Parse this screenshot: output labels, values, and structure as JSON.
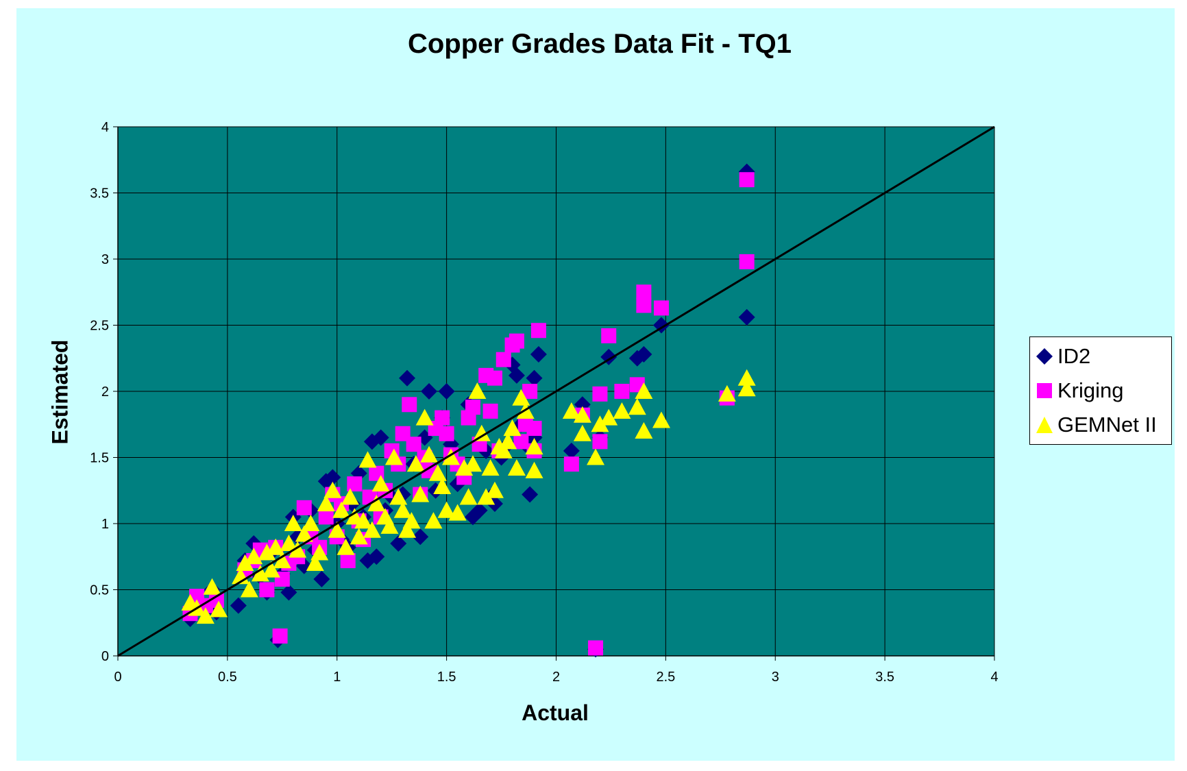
{
  "chart_data": {
    "type": "scatter",
    "title": "Copper Grades Data Fit - TQ1",
    "xlabel": "Actual",
    "ylabel": "Estimated",
    "xlim": [
      0,
      4
    ],
    "ylim": [
      0,
      4
    ],
    "xticks": [
      "0",
      "0.5",
      "1",
      "1.5",
      "2",
      "2.5",
      "3",
      "3.5",
      "4"
    ],
    "yticks": [
      "0",
      "0.5",
      "1",
      "1.5",
      "2",
      "2.5",
      "3",
      "3.5",
      "4"
    ],
    "grid": true,
    "legend": "right",
    "reference_line": {
      "from": [
        0,
        0
      ],
      "to": [
        4,
        4
      ],
      "color": "#000000"
    },
    "plot_background": "#008080",
    "chart_background": "#ccffff",
    "series": [
      {
        "name": "ID2",
        "marker": "diamond",
        "color": "#000080",
        "points": [
          [
            0.33,
            0.28
          ],
          [
            0.36,
            0.42
          ],
          [
            0.4,
            0.35
          ],
          [
            0.43,
            0.5
          ],
          [
            0.45,
            0.33
          ],
          [
            0.55,
            0.38
          ],
          [
            0.58,
            0.72
          ],
          [
            0.62,
            0.85
          ],
          [
            0.65,
            0.6
          ],
          [
            0.68,
            0.48
          ],
          [
            0.7,
            0.78
          ],
          [
            0.73,
            0.12
          ],
          [
            0.75,
            0.62
          ],
          [
            0.78,
            0.48
          ],
          [
            0.8,
            1.05
          ],
          [
            0.82,
            0.9
          ],
          [
            0.85,
            0.68
          ],
          [
            0.88,
            1.1
          ],
          [
            0.9,
            0.8
          ],
          [
            0.93,
            0.58
          ],
          [
            0.95,
            1.32
          ],
          [
            0.98,
            1.35
          ],
          [
            1.0,
            1.0
          ],
          [
            1.02,
            0.88
          ],
          [
            1.05,
            0.82
          ],
          [
            1.07,
            1.15
          ],
          [
            1.1,
            1.38
          ],
          [
            1.12,
            1.05
          ],
          [
            1.14,
            0.72
          ],
          [
            1.16,
            1.62
          ],
          [
            1.18,
            0.75
          ],
          [
            1.2,
            1.65
          ],
          [
            1.22,
            1.1
          ],
          [
            1.25,
            1.2
          ],
          [
            1.28,
            0.85
          ],
          [
            1.3,
            1.22
          ],
          [
            1.32,
            2.1
          ],
          [
            1.35,
            1.45
          ],
          [
            1.38,
            0.9
          ],
          [
            1.4,
            1.65
          ],
          [
            1.42,
            2.0
          ],
          [
            1.45,
            1.25
          ],
          [
            1.48,
            1.8
          ],
          [
            1.5,
            2.0
          ],
          [
            1.52,
            1.6
          ],
          [
            1.55,
            1.3
          ],
          [
            1.6,
            1.9
          ],
          [
            1.62,
            1.05
          ],
          [
            1.65,
            1.1
          ],
          [
            1.68,
            1.55
          ],
          [
            1.7,
            1.2
          ],
          [
            1.72,
            1.15
          ],
          [
            1.75,
            1.5
          ],
          [
            1.78,
            1.6
          ],
          [
            1.8,
            2.2
          ],
          [
            1.82,
            2.12
          ],
          [
            1.84,
            1.75
          ],
          [
            1.86,
            1.6
          ],
          [
            1.88,
            1.22
          ],
          [
            1.9,
            2.1
          ],
          [
            1.92,
            2.28
          ],
          [
            1.9,
            1.65
          ],
          [
            2.07,
            1.55
          ],
          [
            2.12,
            1.9
          ],
          [
            2.2,
            1.65
          ],
          [
            2.24,
            2.26
          ],
          [
            2.37,
            2.25
          ],
          [
            2.4,
            2.28
          ],
          [
            2.48,
            2.5
          ],
          [
            2.87,
            3.66
          ],
          [
            2.87,
            2.56
          ],
          [
            2.18,
            0.05
          ]
        ]
      },
      {
        "name": "Kriging",
        "marker": "square",
        "color": "#ff00ff",
        "points": [
          [
            0.33,
            0.32
          ],
          [
            0.36,
            0.45
          ],
          [
            0.4,
            0.38
          ],
          [
            0.45,
            0.42
          ],
          [
            0.58,
            0.65
          ],
          [
            0.62,
            0.72
          ],
          [
            0.65,
            0.8
          ],
          [
            0.68,
            0.5
          ],
          [
            0.72,
            0.82
          ],
          [
            0.74,
            0.15
          ],
          [
            0.75,
            0.58
          ],
          [
            0.78,
            0.7
          ],
          [
            0.82,
            0.75
          ],
          [
            0.85,
            1.12
          ],
          [
            0.88,
            0.9
          ],
          [
            0.92,
            0.82
          ],
          [
            0.95,
            1.05
          ],
          [
            0.98,
            1.22
          ],
          [
            1.0,
            0.9
          ],
          [
            1.02,
            1.15
          ],
          [
            1.05,
            0.72
          ],
          [
            1.08,
            1.3
          ],
          [
            1.1,
            1.02
          ],
          [
            1.12,
            0.88
          ],
          [
            1.15,
            1.2
          ],
          [
            1.18,
            1.38
          ],
          [
            1.2,
            1.05
          ],
          [
            1.22,
            1.25
          ],
          [
            1.25,
            1.55
          ],
          [
            1.28,
            1.45
          ],
          [
            1.3,
            1.68
          ],
          [
            1.33,
            1.9
          ],
          [
            1.35,
            1.6
          ],
          [
            1.38,
            1.22
          ],
          [
            1.4,
            1.5
          ],
          [
            1.42,
            1.4
          ],
          [
            1.45,
            1.72
          ],
          [
            1.48,
            1.8
          ],
          [
            1.5,
            1.68
          ],
          [
            1.52,
            1.52
          ],
          [
            1.55,
            1.45
          ],
          [
            1.58,
            1.35
          ],
          [
            1.6,
            1.8
          ],
          [
            1.62,
            1.88
          ],
          [
            1.65,
            1.6
          ],
          [
            1.68,
            2.12
          ],
          [
            1.7,
            1.85
          ],
          [
            1.72,
            2.1
          ],
          [
            1.74,
            1.55
          ],
          [
            1.76,
            2.24
          ],
          [
            1.8,
            2.35
          ],
          [
            1.82,
            2.38
          ],
          [
            1.84,
            1.62
          ],
          [
            1.86,
            1.75
          ],
          [
            1.88,
            2.0
          ],
          [
            1.9,
            1.72
          ],
          [
            1.92,
            2.46
          ],
          [
            1.9,
            1.55
          ],
          [
            2.07,
            1.45
          ],
          [
            2.12,
            1.82
          ],
          [
            2.2,
            1.98
          ],
          [
            2.2,
            1.62
          ],
          [
            2.24,
            2.42
          ],
          [
            2.3,
            2.0
          ],
          [
            2.37,
            2.05
          ],
          [
            2.4,
            2.75
          ],
          [
            2.4,
            2.65
          ],
          [
            2.48,
            2.63
          ],
          [
            2.78,
            1.95
          ],
          [
            2.87,
            3.6
          ],
          [
            2.87,
            2.98
          ],
          [
            2.18,
            0.06
          ]
        ]
      },
      {
        "name": "GEMNet II",
        "marker": "triangle",
        "color": "#ffff00",
        "points": [
          [
            0.33,
            0.4
          ],
          [
            0.36,
            0.36
          ],
          [
            0.4,
            0.3
          ],
          [
            0.43,
            0.52
          ],
          [
            0.46,
            0.35
          ],
          [
            0.56,
            0.6
          ],
          [
            0.58,
            0.7
          ],
          [
            0.6,
            0.5
          ],
          [
            0.62,
            0.75
          ],
          [
            0.65,
            0.62
          ],
          [
            0.68,
            0.78
          ],
          [
            0.7,
            0.65
          ],
          [
            0.72,
            0.82
          ],
          [
            0.75,
            0.72
          ],
          [
            0.78,
            0.85
          ],
          [
            0.8,
            1.0
          ],
          [
            0.82,
            0.8
          ],
          [
            0.85,
            0.92
          ],
          [
            0.88,
            1.0
          ],
          [
            0.9,
            0.7
          ],
          [
            0.92,
            0.78
          ],
          [
            0.95,
            1.15
          ],
          [
            0.98,
            1.25
          ],
          [
            1.0,
            0.95
          ],
          [
            1.02,
            1.1
          ],
          [
            1.04,
            0.82
          ],
          [
            1.06,
            1.2
          ],
          [
            1.08,
            1.05
          ],
          [
            1.1,
            0.9
          ],
          [
            1.12,
            1.02
          ],
          [
            1.14,
            1.48
          ],
          [
            1.16,
            0.95
          ],
          [
            1.18,
            1.15
          ],
          [
            1.2,
            1.3
          ],
          [
            1.22,
            1.05
          ],
          [
            1.24,
            0.98
          ],
          [
            1.26,
            1.5
          ],
          [
            1.28,
            1.2
          ],
          [
            1.3,
            1.1
          ],
          [
            1.32,
            0.95
          ],
          [
            1.34,
            1.02
          ],
          [
            1.36,
            1.45
          ],
          [
            1.38,
            1.22
          ],
          [
            1.4,
            1.8
          ],
          [
            1.42,
            1.52
          ],
          [
            1.44,
            1.02
          ],
          [
            1.46,
            1.38
          ],
          [
            1.48,
            1.28
          ],
          [
            1.5,
            1.1
          ],
          [
            1.52,
            1.5
          ],
          [
            1.55,
            1.08
          ],
          [
            1.58,
            1.42
          ],
          [
            1.6,
            1.2
          ],
          [
            1.62,
            1.45
          ],
          [
            1.64,
            2.0
          ],
          [
            1.66,
            1.68
          ],
          [
            1.68,
            1.2
          ],
          [
            1.7,
            1.42
          ],
          [
            1.72,
            1.25
          ],
          [
            1.74,
            1.58
          ],
          [
            1.76,
            1.55
          ],
          [
            1.78,
            1.62
          ],
          [
            1.8,
            1.72
          ],
          [
            1.82,
            1.42
          ],
          [
            1.84,
            1.95
          ],
          [
            1.86,
            1.85
          ],
          [
            1.9,
            1.58
          ],
          [
            1.9,
            1.4
          ],
          [
            2.07,
            1.85
          ],
          [
            2.12,
            1.82
          ],
          [
            2.12,
            1.68
          ],
          [
            2.18,
            1.5
          ],
          [
            2.2,
            1.75
          ],
          [
            2.24,
            1.8
          ],
          [
            2.3,
            1.85
          ],
          [
            2.37,
            1.88
          ],
          [
            2.4,
            2.0
          ],
          [
            2.4,
            1.7
          ],
          [
            2.48,
            1.78
          ],
          [
            2.78,
            1.98
          ],
          [
            2.87,
            2.1
          ],
          [
            2.87,
            2.02
          ]
        ]
      }
    ]
  }
}
